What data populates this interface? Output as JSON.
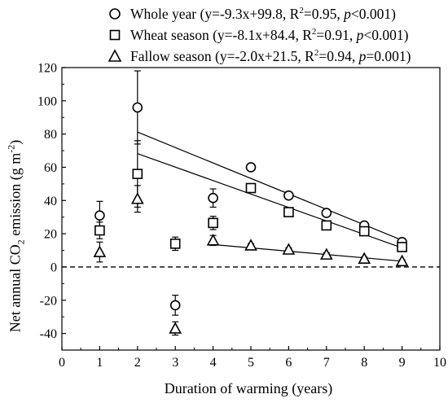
{
  "chart_data": {
    "type": "scatter",
    "xlabel": "Duration of warming (years)",
    "ylabel_parts": {
      "pre": "Net annual CO",
      "sub": "2",
      "mid": " emission (g m",
      "sup": "-2",
      "post": ")"
    },
    "xlim": [
      0,
      10
    ],
    "ylim": [
      -50,
      120
    ],
    "xticks": [
      0,
      1,
      2,
      3,
      4,
      5,
      6,
      7,
      8,
      9,
      10
    ],
    "yticks": [
      -40,
      -20,
      0,
      20,
      40,
      60,
      80,
      100,
      120
    ],
    "zero_line": "dashed",
    "legend_position": "top",
    "series": [
      {
        "name": "Whole year",
        "equation": "(y=-9.3x+99.8, R",
        "r2_value": "=0.95, ",
        "p_label": "p",
        "p_value": "<0.001)",
        "marker": "circle",
        "x": [
          1,
          2,
          3,
          4,
          5,
          6,
          7,
          8,
          9
        ],
        "y": [
          31,
          96,
          -23,
          41.5,
          60,
          43,
          32.5,
          25,
          15
        ],
        "err": [
          8.5,
          22,
          6,
          5.5,
          2,
          1.5,
          1.5,
          1.5,
          1.5
        ],
        "fit": {
          "slope": -9.3,
          "intercept": 99.8,
          "x_range": [
            2,
            9
          ]
        }
      },
      {
        "name": "Wheat season",
        "equation": "(y=-8.1x+84.4, R",
        "r2_value": "=0.91, ",
        "p_label": "p",
        "p_value": "<0.001)",
        "marker": "square",
        "x": [
          1,
          2,
          3,
          4,
          5,
          6,
          7,
          8,
          9
        ],
        "y": [
          22,
          56,
          14,
          26.5,
          47.5,
          33,
          25,
          21.5,
          12
        ],
        "err": [
          5,
          20,
          4,
          4,
          1.5,
          1.5,
          1,
          1.5,
          1
        ],
        "fit": {
          "slope": -8.1,
          "intercept": 84.4,
          "x_range": [
            2,
            9
          ]
        }
      },
      {
        "name": "Fallow season",
        "equation": "(y=-2.0x+21.5, R",
        "r2_value": "=0.94, ",
        "p_label": "p",
        "p_value": "=0.001)",
        "marker": "triangle",
        "x": [
          1,
          2,
          3,
          4,
          5,
          6,
          7,
          8,
          9
        ],
        "y": [
          9,
          41,
          -37,
          16,
          13,
          10.5,
          7.5,
          5,
          3.5
        ],
        "err": [
          6,
          8,
          4,
          3,
          1,
          1,
          1,
          1,
          0.8
        ],
        "fit": {
          "slope": -2.0,
          "intercept": 21.5,
          "x_range": [
            4,
            9
          ]
        }
      }
    ]
  }
}
